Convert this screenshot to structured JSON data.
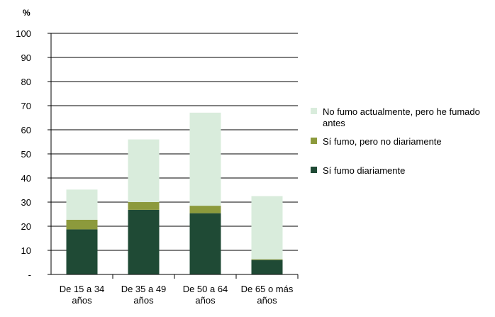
{
  "chart_data": {
    "type": "bar",
    "stacked": true,
    "unit": "%",
    "categories": [
      [
        "De 15 a 34",
        "años"
      ],
      [
        "De 35 a 49",
        "años"
      ],
      [
        "De 50 a 64",
        "años"
      ],
      [
        "De 65 o más",
        "años"
      ]
    ],
    "series": [
      {
        "name": "Sí fumo diariamente",
        "color": "#1f4a35",
        "values": [
          18.7,
          26.8,
          25.4,
          6.0
        ]
      },
      {
        "name": "Sí fumo, pero no diariamente",
        "color": "#8c9a3c",
        "values": [
          4.0,
          3.2,
          3.1,
          0.3
        ]
      },
      {
        "name": "No fumo actualmente, pero he fumado antes",
        "color": "#d9ecdc",
        "values": [
          12.5,
          26.0,
          38.6,
          26.2
        ]
      }
    ],
    "legend_order": [
      2,
      1,
      0
    ],
    "legend_lines": [
      [
        "No fumo actualmente, pero he fumado",
        "antes"
      ],
      [
        "Sí fumo, pero no diariamente"
      ],
      [
        "Sí fumo diariamente"
      ]
    ],
    "ylim": [
      0,
      100
    ],
    "yticks": [
      0,
      10,
      20,
      30,
      40,
      50,
      60,
      70,
      80,
      90,
      100
    ],
    "ytick_labels": [
      "-",
      "10",
      "20",
      "30",
      "40",
      "50",
      "60",
      "70",
      "80",
      "90",
      "100"
    ],
    "grid": true,
    "legend_position": "right"
  }
}
